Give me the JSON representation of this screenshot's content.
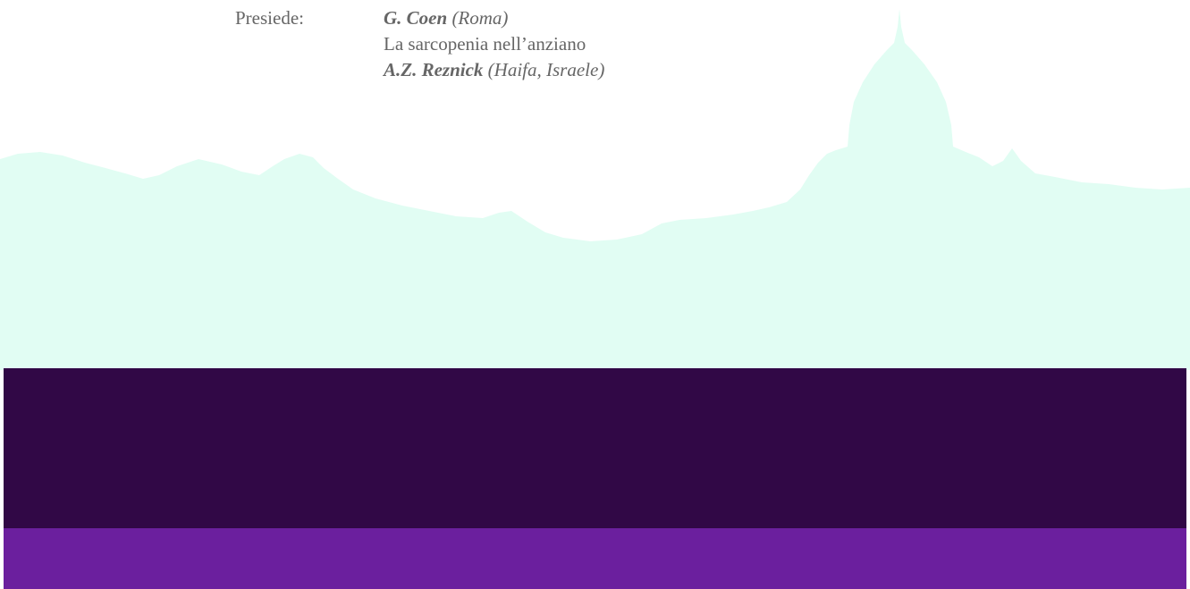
{
  "colors": {
    "background": "#ffffff",
    "skyline": "#e1fdf3",
    "band_dark": "#310846",
    "band_purple": "#6b1f9e",
    "text": "#666666"
  },
  "session": {
    "chair_label": "Presiede:",
    "chair_name": "G. Coen",
    "chair_place": "(Roma)",
    "talk_title": "La sarcopenia nell’anziano",
    "speaker_name": "A.Z. Reznick",
    "speaker_place": "(Haifa, Israele)"
  }
}
